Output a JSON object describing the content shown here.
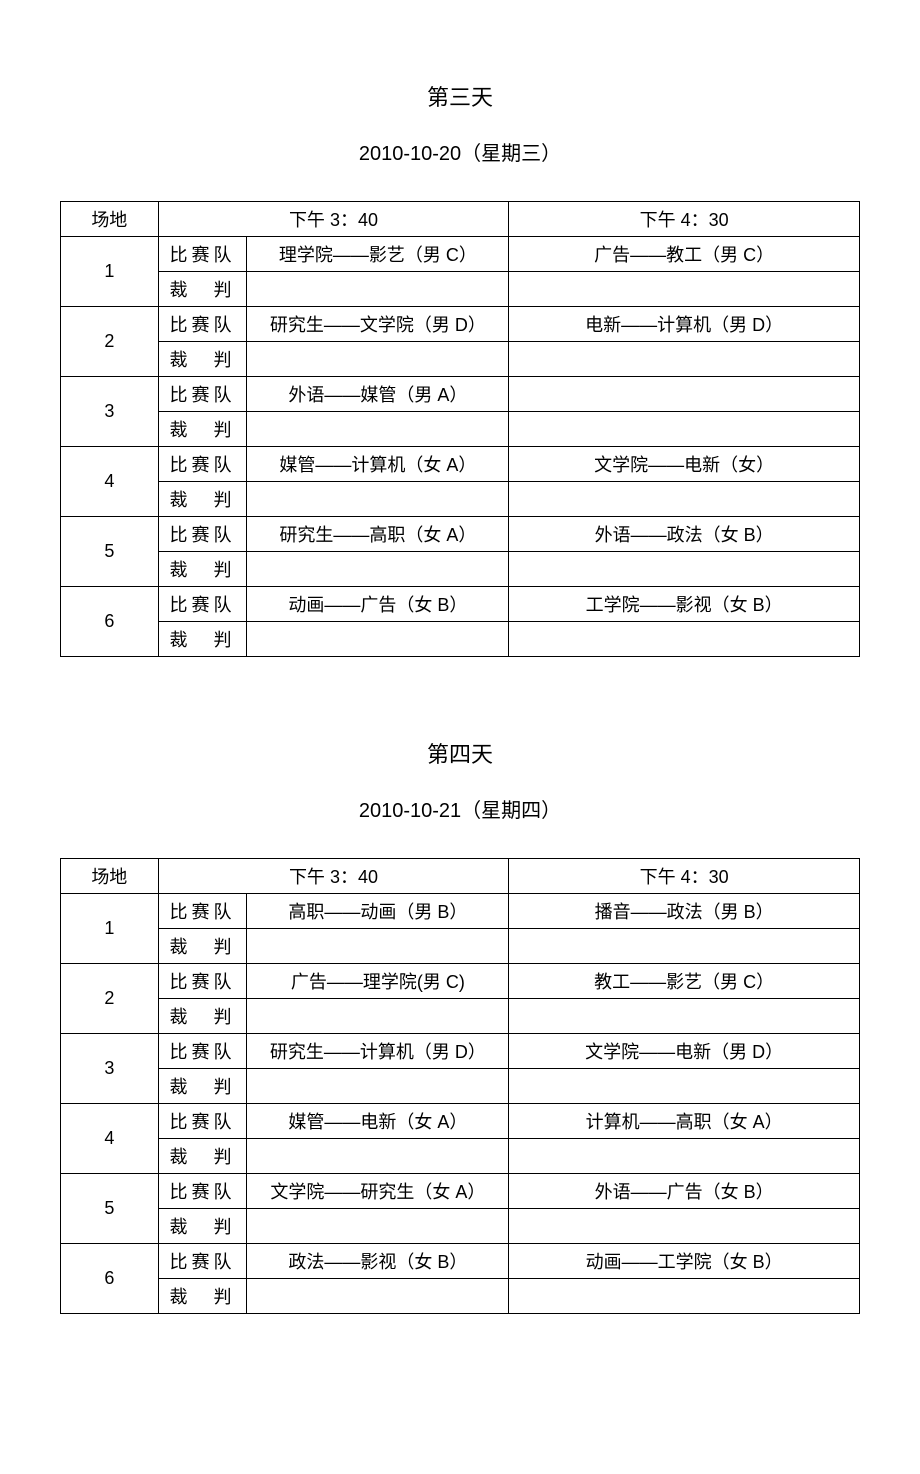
{
  "day3": {
    "title": "第三天",
    "date": "2010-10-20（星期三）",
    "headers": {
      "venue": "场地",
      "time1": "下午 3：40",
      "time2": "下午 4：30"
    },
    "rowLabels": {
      "match": "比赛队",
      "referee": "裁　判"
    },
    "venues": [
      {
        "num": "1",
        "match1": "理学院——影艺（男 C）",
        "match2": "广告——教工（男 C）",
        "ref1": "",
        "ref2": ""
      },
      {
        "num": "2",
        "match1": "研究生——文学院（男 D）",
        "match2": "电新——计算机（男 D）",
        "ref1": "",
        "ref2": ""
      },
      {
        "num": "3",
        "match1": "外语——媒管（男 A）",
        "match2": "",
        "ref1": "",
        "ref2": ""
      },
      {
        "num": "4",
        "match1": "媒管——计算机（女 A）",
        "match2": "文学院——电新（女）",
        "ref1": "",
        "ref2": ""
      },
      {
        "num": "5",
        "match1": "研究生——高职（女 A）",
        "match2": "外语——政法（女 B）",
        "ref1": "",
        "ref2": ""
      },
      {
        "num": "6",
        "match1": "动画——广告（女 B）",
        "match2": "工学院——影视（女 B）",
        "ref1": "",
        "ref2": ""
      }
    ]
  },
  "day4": {
    "title": "第四天",
    "date": "2010-10-21（星期四）",
    "headers": {
      "venue": "场地",
      "time1": "下午 3：40",
      "time2": "下午 4：30"
    },
    "rowLabels": {
      "match": "比赛队",
      "referee": "裁　判"
    },
    "venues": [
      {
        "num": "1",
        "match1": "高职——动画（男 B）",
        "match2": "播音——政法（男 B）",
        "ref1": "",
        "ref2": ""
      },
      {
        "num": "2",
        "match1": "广告——理学院(男 C)",
        "match2": "教工——影艺（男 C）",
        "ref1": "",
        "ref2": ""
      },
      {
        "num": "3",
        "match1": "研究生——计算机（男 D）",
        "match2": "文学院——电新（男 D）",
        "ref1": "",
        "ref2": ""
      },
      {
        "num": "4",
        "match1": "媒管——电新（女 A）",
        "match2": "计算机——高职（女 A）",
        "ref1": "",
        "ref2": ""
      },
      {
        "num": "5",
        "match1": "文学院——研究生（女 A）",
        "match2": "外语——广告（女 B）",
        "ref1": "",
        "ref2": ""
      },
      {
        "num": "6",
        "match1": "政法——影视（女 B）",
        "match2": "动画——工学院（女 B）",
        "ref1": "",
        "ref2": ""
      }
    ]
  }
}
